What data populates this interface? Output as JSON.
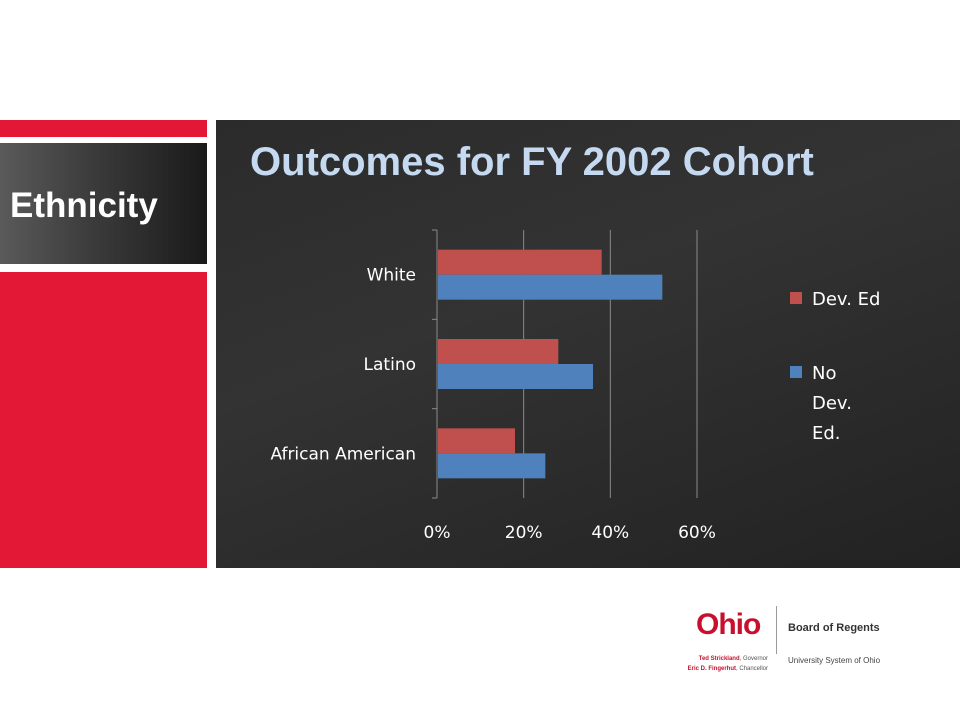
{
  "slide": {
    "side_title": "Ethnicity",
    "title": "Outcomes for FY 2002 Cohort"
  },
  "colors": {
    "accent_red": "#e31837",
    "title_blue": "#c5d9f1",
    "series_dev_ed": "#c0504d",
    "series_no_dev_ed": "#4f81bd"
  },
  "chart_data": {
    "type": "bar",
    "orientation": "horizontal",
    "categories": [
      "White",
      "Latino",
      "African American"
    ],
    "series": [
      {
        "name": "Dev. Ed",
        "color": "#c0504d",
        "values": [
          0.38,
          0.28,
          0.18
        ]
      },
      {
        "name": "No Dev. Ed.",
        "color": "#4f81bd",
        "values": [
          0.52,
          0.36,
          0.25
        ]
      }
    ],
    "xlim": [
      0,
      0.6
    ],
    "x_ticks": [
      "0%",
      "20%",
      "40%",
      "60%"
    ],
    "grid": true,
    "legend_position": "right"
  },
  "legend": {
    "items": [
      {
        "label": "Dev. Ed",
        "color": "#c0504d"
      },
      {
        "label": "No Dev. Ed.",
        "color": "#4f81bd"
      }
    ]
  },
  "logo": {
    "wordmark": "Ohio",
    "board": "Board of Regents",
    "governor_name": "Ted Strickland",
    "governor_title": ", Governor",
    "chancellor_name": "Eric D. Fingerhut",
    "chancellor_title": ", Chancellor",
    "system": "University System of Ohio"
  }
}
